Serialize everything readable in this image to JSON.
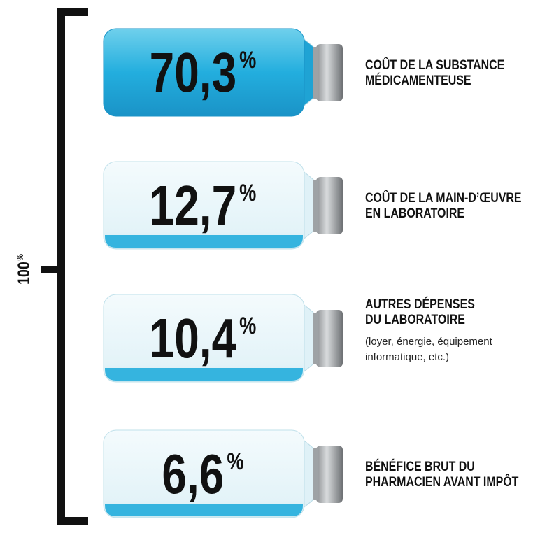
{
  "total": {
    "value": "100",
    "unit": "%"
  },
  "items": [
    {
      "value": "70,3",
      "unit": "%",
      "label_lines": [
        "COÛT DE LA SUBSTANCE",
        "MÉDICAMENTEUSE"
      ]
    },
    {
      "value": "12,7",
      "unit": "%",
      "label_lines": [
        "COÛT DE LA MAIN-D’ŒUVRE",
        "EN LABORATOIRE"
      ]
    },
    {
      "value": "10,4",
      "unit": "%",
      "label_lines": [
        "AUTRES DÉPENSES",
        "DU LABORATOIRE"
      ],
      "note_lines": [
        "(loyer, énergie, équipement",
        "informatique, etc.)"
      ]
    },
    {
      "value": "6,6",
      "unit": "%",
      "label_lines": [
        "BÉNÉFICE BRUT DU",
        "PHARMACIEN AVANT IMPÔT"
      ]
    }
  ]
}
